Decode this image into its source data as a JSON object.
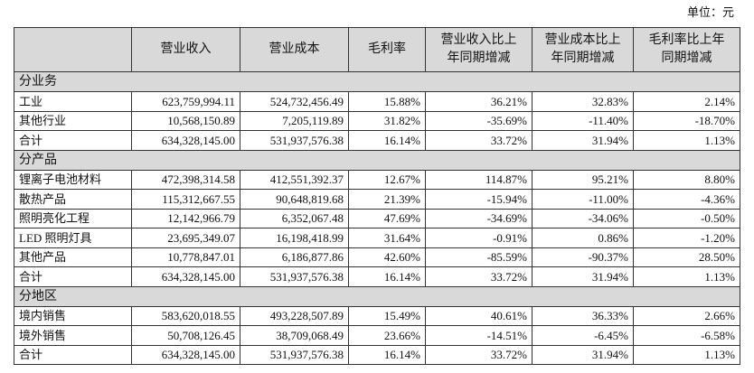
{
  "unit": "单位：元",
  "table": {
    "header": [
      [
        ""
      ],
      [
        "营业收入"
      ],
      [
        "营业成本"
      ],
      [
        "毛利率"
      ],
      [
        "营业收入比上",
        "年同期增减"
      ],
      [
        "营业成本比上",
        "年同期增减"
      ],
      [
        "毛利率比上年",
        "同期增减"
      ]
    ],
    "sections": [
      {
        "title": "分业务",
        "rows": [
          [
            "工业",
            "623,759,994.11",
            "524,732,456.49",
            "15.88%",
            "36.21%",
            "32.83%",
            "2.14%"
          ],
          [
            "其他行业",
            "10,568,150.89",
            "7,205,119.89",
            "31.82%",
            "-35.69%",
            "-11.40%",
            "-18.70%"
          ],
          [
            "合计",
            "634,328,145.00",
            "531,937,576.38",
            "16.14%",
            "33.72%",
            "31.94%",
            "1.13%"
          ]
        ]
      },
      {
        "title": "分产品",
        "rows": [
          [
            "锂离子电池材料",
            "472,398,314.58",
            "412,551,392.37",
            "12.67%",
            "114.87%",
            "95.21%",
            "8.80%"
          ],
          [
            "散热产品",
            "115,312,667.55",
            "90,648,819.68",
            "21.39%",
            "-15.94%",
            "-11.00%",
            "-4.36%"
          ],
          [
            "照明亮化工程",
            "12,142,966.79",
            "6,352,067.48",
            "47.69%",
            "-34.69%",
            "-34.06%",
            "-0.50%"
          ],
          [
            "LED 照明灯具",
            "23,695,349.07",
            "16,198,418.99",
            "31.64%",
            "-0.91%",
            "0.86%",
            "-1.20%"
          ],
          [
            "其他产品",
            "10,778,847.01",
            "6,186,877.86",
            "42.60%",
            "-85.59%",
            "-90.37%",
            "28.50%"
          ],
          [
            "合计",
            "634,328,145.00",
            "531,937,576.38",
            "16.14%",
            "33.72%",
            "31.94%",
            "1.13%"
          ]
        ]
      },
      {
        "title": "分地区",
        "rows": [
          [
            "境内销售",
            "583,620,018.55",
            "493,228,507.89",
            "15.49%",
            "40.61%",
            "36.33%",
            "2.66%"
          ],
          [
            "境外销售",
            "50,708,126.45",
            "38,709,068.49",
            "23.66%",
            "-14.51%",
            "-6.45%",
            "-6.58%"
          ],
          [
            "合计",
            "634,328,145.00",
            "531,937,576.38",
            "16.14%",
            "33.72%",
            "31.94%",
            "1.13%"
          ]
        ]
      }
    ]
  }
}
